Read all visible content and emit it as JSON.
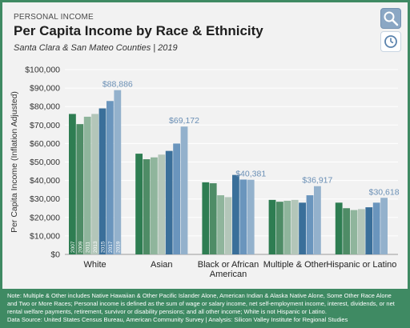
{
  "header": {
    "kicker": "PERSONAL INCOME",
    "title": "Per Capita Income by Race & Ethnicity",
    "subtitle": "Santa Clara & San Mateo Counties | 2019"
  },
  "toolbar": {
    "search_icon": "search-icon",
    "clock_icon": "clock-icon"
  },
  "chart_data": {
    "type": "bar",
    "ylabel": "Per Capita Income (Inflation Adjusted)",
    "xlabel": "",
    "ylim": [
      0,
      100000
    ],
    "yticks": [
      "$0",
      "$10,000",
      "$20,000",
      "$30,000",
      "$40,000",
      "$50,000",
      "$60,000",
      "$70,000",
      "$80,000",
      "$90,000",
      "$100,000"
    ],
    "categories": [
      "White",
      "Asian",
      "Black or African American",
      "Multiple & Other",
      "Hispanic or Latino"
    ],
    "category_lines": [
      [
        "White"
      ],
      [
        "Asian"
      ],
      [
        "Black or African",
        "American"
      ],
      [
        "Multiple & Other"
      ],
      [
        "Hispanic or Latino"
      ]
    ],
    "years": [
      "2007",
      "2009",
      "2011",
      "2013",
      "2015",
      "2017",
      "2019"
    ],
    "colors": [
      "#2e7d52",
      "#4e8c66",
      "#8fb59c",
      "#b3c6b9",
      "#3a6f9a",
      "#6a95bd",
      "#93b1cc"
    ],
    "series": [
      {
        "name": "2007",
        "values": [
          76000,
          54500,
          39000,
          29500,
          28000
        ]
      },
      {
        "name": "2009",
        "values": [
          70500,
          51500,
          38500,
          28500,
          25000
        ]
      },
      {
        "name": "2011",
        "values": [
          74500,
          52500,
          32000,
          29000,
          24000
        ]
      },
      {
        "name": "2013",
        "values": [
          76000,
          54000,
          31000,
          29500,
          24500
        ]
      },
      {
        "name": "2015",
        "values": [
          79000,
          56000,
          43000,
          28000,
          25500
        ]
      },
      {
        "name": "2017",
        "values": [
          83000,
          60000,
          40500,
          32000,
          28000
        ]
      },
      {
        "name": "2019",
        "values": [
          88886,
          69172,
          40381,
          36917,
          30618
        ]
      }
    ],
    "data_labels": [
      "$88,886",
      "$69,172",
      "$40,381",
      "$36,917",
      "$30,618"
    ],
    "grid": true
  },
  "footer": {
    "note": "Note: Multiple & Other includes Native Hawaiian & Other Pacific Islander Alone, American Indian & Alaska Native Alone, Some Other Race Alone and Two or More Races; Personal income is defined as the sum of wage or salary income, net self-employment income, interest, dividends, or net rental welfare payments, retirement, survivor or disability pensions; and all other income; White is not Hispanic or Latino.",
    "source": "Data Source: United States Census Bureau, American Community Survey | Analysis: Silicon Valley Institute for Regional Studies"
  }
}
